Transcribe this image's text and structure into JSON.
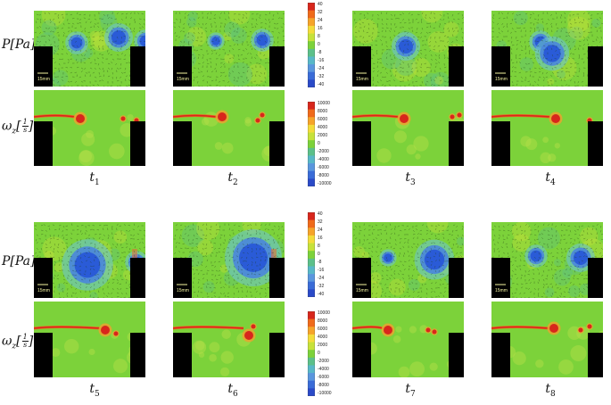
{
  "figure": {
    "rows": [
      {
        "label_main": "P[Pa]"
      },
      {
        "label_main": "ω",
        "label_sub": "z",
        "label_bracket_open": "[",
        "label_num": "1",
        "label_den": "s",
        "label_bracket_close": "]"
      }
    ],
    "time_labels": [
      "1",
      "2",
      "3",
      "4",
      "5",
      "6",
      "7",
      "8"
    ],
    "time_symbol": "t",
    "scale_bar_label": "15mm",
    "pressure_colorbar_ticks": [
      "40",
      "32",
      "24",
      "16",
      "8",
      "0",
      "-8",
      "-16",
      "-24",
      "-32",
      "-40"
    ],
    "vorticity_colorbar_ticks": [
      "10000",
      "8000",
      "6000",
      "4000",
      "2000",
      "0",
      "-2000",
      "-4000",
      "-6000",
      "-8000",
      "-10000"
    ],
    "colors": {
      "field_green": "#7cd23a",
      "low_blue": "#2a5bd7",
      "high_red": "#d8261c",
      "wall_black": "#000000"
    }
  }
}
